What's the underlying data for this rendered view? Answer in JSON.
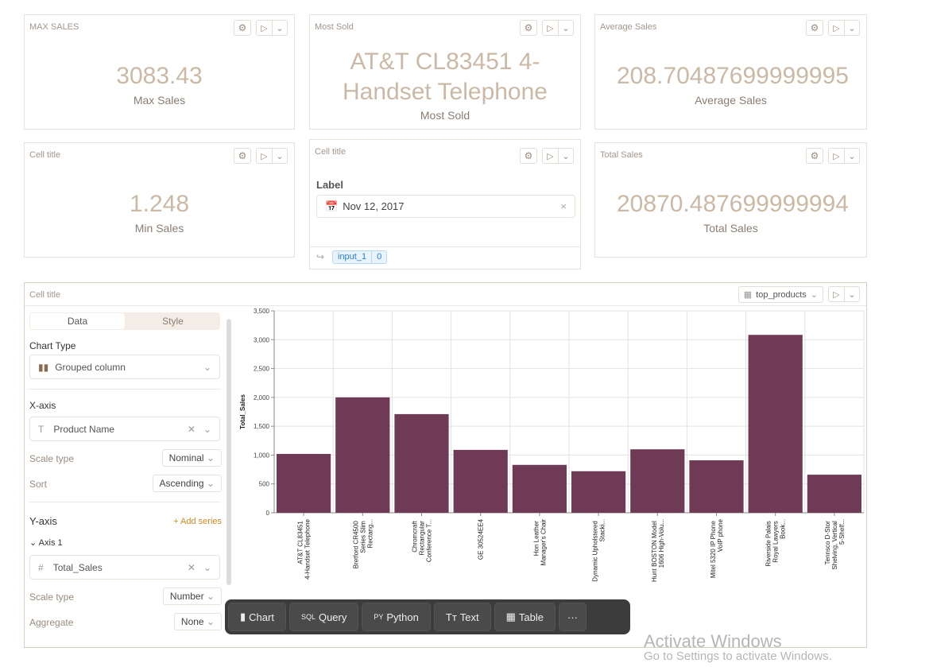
{
  "cards": [
    {
      "title": "MAX SALES",
      "value": "3083.43",
      "label": "Max Sales"
    },
    {
      "title": "Most Sold",
      "value_line1": "AT&T CL83451 4-",
      "value_line2": "Handset Telephone",
      "label": "Most Sold"
    },
    {
      "title": "Average Sales",
      "value": "208.70487699999995",
      "label": "Average Sales"
    },
    {
      "title": "Cell title",
      "value": "1.248",
      "label": "Min Sales"
    },
    {
      "title": "Cell title",
      "input_label": "Label",
      "date_value": "Nov 12, 2017",
      "var_name": "input_1",
      "var_value": "0"
    },
    {
      "title": "Total Sales",
      "value": "20870.487699999994",
      "label": "Total Sales"
    }
  ],
  "chart_cell": {
    "title": "Cell title",
    "dataframe": "top_products",
    "tabs": [
      "Data",
      "Style"
    ],
    "chart_type_label": "Chart Type",
    "chart_type": "Grouped column",
    "xaxis_label": "X-axis",
    "x_field": "Product Name",
    "scale_type_label": "Scale type",
    "x_scale": "Nominal",
    "sort_label": "Sort",
    "sort": "Ascending",
    "yaxis_label": "Y-axis",
    "add_series": "+ Add series",
    "axis1": "Axis 1",
    "y_field": "Total_Sales",
    "y_scale": "Number",
    "aggregate_label": "Aggregate",
    "aggregate": "None"
  },
  "chart_data": {
    "type": "bar",
    "ylabel": "Total_Sales",
    "ylim": [
      0,
      3500
    ],
    "yticks": [
      "0",
      "500",
      "1,000",
      "1,500",
      "2,000",
      "2,500",
      "3,000",
      "3,500"
    ],
    "grid": true,
    "color": "#6e3a56",
    "categories": [
      "AT&T CL83451 4-Handset Telephone",
      "Bretford CR4500 Series Slim Rectang...",
      "Chromcraft Rectangular Conference T...",
      "GE 30524EE4",
      "Hon Leather Manager's Chair",
      "Dynamic Upholstered Stacki...",
      "Hunt BOSTON Model 1606 High-Volu...",
      "Mitel 5320 IP Phone VoIP phone",
      "Riverside Palais Royal Lawyers Book...",
      "Tennsco D-Stor Shelving, Vertical 5-Shelf..."
    ],
    "values": [
      1020,
      2000,
      1710,
      1090,
      830,
      720,
      1100,
      910,
      3083.43,
      660
    ]
  },
  "toolbar": [
    {
      "icon": "chart-icon",
      "label": "Chart"
    },
    {
      "icon": "sql-icon",
      "label": "Query"
    },
    {
      "icon": "python-icon",
      "label": "Python"
    },
    {
      "icon": "text-icon",
      "label": "Text"
    },
    {
      "icon": "table-icon",
      "label": "Table"
    },
    {
      "icon": "more-icon",
      "label": "···"
    }
  ],
  "watermark": {
    "line1": "Activate Windows",
    "line2": "Go to Settings to activate Windows."
  }
}
